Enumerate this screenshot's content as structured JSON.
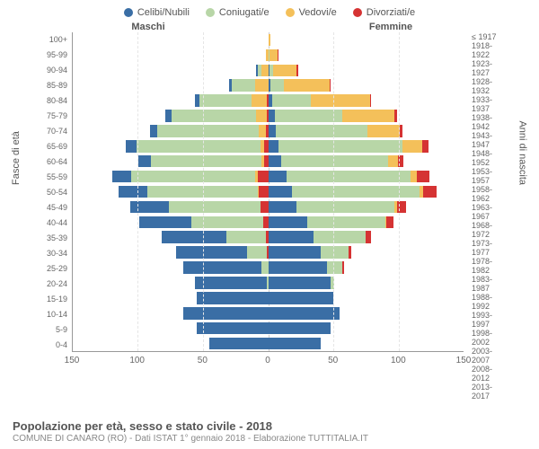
{
  "legend": [
    {
      "label": "Celibi/Nubili",
      "color": "#3a6ea5"
    },
    {
      "label": "Coniugati/e",
      "color": "#b8d6a7"
    },
    {
      "label": "Vedovi/e",
      "color": "#f4c05a"
    },
    {
      "label": "Divorziati/e",
      "color": "#d53333"
    }
  ],
  "headers": {
    "male": "Maschi",
    "female": "Femmine"
  },
  "axis_left_title": "Fasce di età",
  "axis_right_title": "Anni di nascita",
  "title": "Popolazione per età, sesso e stato civile - 2018",
  "subtitle": "COMUNE DI CANARO (RO) - Dati ISTAT 1° gennaio 2018 - Elaborazione TUTTITALIA.IT",
  "x_max": 150,
  "x_ticks": [
    150,
    100,
    50,
    0,
    50,
    100,
    150
  ],
  "grid_at": [
    -100,
    -50,
    50,
    100
  ],
  "colors": {
    "single": "#3a6ea5",
    "married": "#b8d6a7",
    "widowed": "#f4c05a",
    "divorced": "#d53333",
    "bg": "#ffffff",
    "axis": "#999999",
    "grid": "#e5e5e5",
    "center": "#cccccc"
  },
  "rows": [
    {
      "age": "100+",
      "birth": "≤ 1917",
      "m": [
        0,
        0,
        0,
        0
      ],
      "f": [
        0,
        0,
        2,
        0
      ]
    },
    {
      "age": "95-99",
      "birth": "1918-1922",
      "m": [
        0,
        0,
        2,
        0
      ],
      "f": [
        0,
        1,
        6,
        1
      ]
    },
    {
      "age": "90-94",
      "birth": "1923-1927",
      "m": [
        1,
        3,
        5,
        0
      ],
      "f": [
        1,
        3,
        18,
        1
      ]
    },
    {
      "age": "85-89",
      "birth": "1928-1932",
      "m": [
        2,
        18,
        10,
        0
      ],
      "f": [
        2,
        10,
        35,
        1
      ]
    },
    {
      "age": "80-84",
      "birth": "1933-1937",
      "m": [
        3,
        40,
        12,
        1
      ],
      "f": [
        3,
        30,
        45,
        1
      ]
    },
    {
      "age": "75-79",
      "birth": "1938-1942",
      "m": [
        5,
        65,
        8,
        1
      ],
      "f": [
        5,
        52,
        40,
        2
      ]
    },
    {
      "age": "70-74",
      "birth": "1943-1947",
      "m": [
        6,
        78,
        5,
        2
      ],
      "f": [
        6,
        70,
        25,
        2
      ]
    },
    {
      "age": "65-69",
      "birth": "1948-1952",
      "m": [
        8,
        95,
        3,
        3
      ],
      "f": [
        8,
        95,
        15,
        5
      ]
    },
    {
      "age": "60-64",
      "birth": "1953-1957",
      "m": [
        10,
        85,
        2,
        3
      ],
      "f": [
        10,
        82,
        8,
        4
      ]
    },
    {
      "age": "55-59",
      "birth": "1958-1962",
      "m": [
        15,
        95,
        2,
        8
      ],
      "f": [
        14,
        95,
        5,
        10
      ]
    },
    {
      "age": "50-54",
      "birth": "1963-1967",
      "m": [
        22,
        85,
        1,
        7
      ],
      "f": [
        18,
        98,
        3,
        10
      ]
    },
    {
      "age": "45-49",
      "birth": "1968-1972",
      "m": [
        30,
        70,
        0,
        6
      ],
      "f": [
        22,
        75,
        2,
        7
      ]
    },
    {
      "age": "40-44",
      "birth": "1973-1977",
      "m": [
        40,
        55,
        0,
        4
      ],
      "f": [
        30,
        60,
        1,
        5
      ]
    },
    {
      "age": "35-39",
      "birth": "1978-1982",
      "m": [
        50,
        30,
        0,
        2
      ],
      "f": [
        35,
        40,
        0,
        4
      ]
    },
    {
      "age": "30-34",
      "birth": "1983-1987",
      "m": [
        55,
        15,
        0,
        1
      ],
      "f": [
        40,
        22,
        0,
        2
      ]
    },
    {
      "age": "25-29",
      "birth": "1988-1992",
      "m": [
        60,
        5,
        0,
        0
      ],
      "f": [
        45,
        12,
        0,
        1
      ]
    },
    {
      "age": "20-24",
      "birth": "1993-1997",
      "m": [
        55,
        1,
        0,
        0
      ],
      "f": [
        48,
        3,
        0,
        0
      ]
    },
    {
      "age": "15-19",
      "birth": "1998-2002",
      "m": [
        55,
        0,
        0,
        0
      ],
      "f": [
        50,
        0,
        0,
        0
      ]
    },
    {
      "age": "10-14",
      "birth": "2003-2007",
      "m": [
        65,
        0,
        0,
        0
      ],
      "f": [
        55,
        0,
        0,
        0
      ]
    },
    {
      "age": "5-9",
      "birth": "2008-2012",
      "m": [
        55,
        0,
        0,
        0
      ],
      "f": [
        48,
        0,
        0,
        0
      ]
    },
    {
      "age": "0-4",
      "birth": "2013-2017",
      "m": [
        45,
        0,
        0,
        0
      ],
      "f": [
        40,
        0,
        0,
        0
      ]
    }
  ]
}
